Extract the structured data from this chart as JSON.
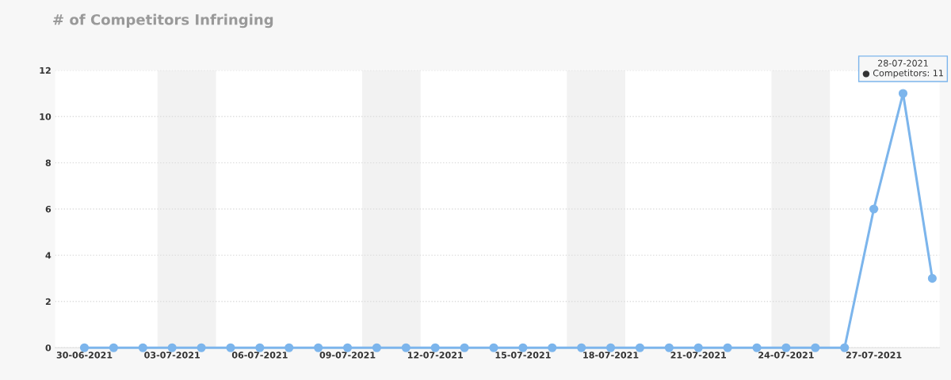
{
  "chart_data": {
    "type": "line",
    "title": "# of Competitors Infringing",
    "x": [
      "2021-06-30",
      "2021-07-01",
      "2021-07-02",
      "2021-07-03",
      "2021-07-04",
      "2021-07-05",
      "2021-07-06",
      "2021-07-07",
      "2021-07-08",
      "2021-07-09",
      "2021-07-10",
      "2021-07-11",
      "2021-07-12",
      "2021-07-13",
      "2021-07-14",
      "2021-07-15",
      "2021-07-16",
      "2021-07-17",
      "2021-07-18",
      "2021-07-19",
      "2021-07-20",
      "2021-07-21",
      "2021-07-22",
      "2021-07-23",
      "2021-07-24",
      "2021-07-25",
      "2021-07-26",
      "2021-07-27",
      "2021-07-28",
      "2021-07-29"
    ],
    "series": [
      {
        "color": "#7cb5ec",
        "values": [
          0,
          0,
          0,
          0,
          0,
          0,
          0,
          0,
          0,
          0,
          0,
          0,
          0,
          0,
          0,
          0,
          0,
          0,
          0,
          0,
          0,
          0,
          0,
          0,
          0,
          0,
          0,
          6,
          11,
          3
        ]
      }
    ],
    "marker": "circle",
    "line_style": "solid",
    "xlim": [
      "2021-06-29",
      "2021-07-29T06:00"
    ],
    "xticks": [
      {
        "value": "2021-06-30",
        "label": "30-06-2021"
      },
      {
        "value": "2021-07-03",
        "label": "03-07-2021"
      },
      {
        "value": "2021-07-06",
        "label": "06-07-2021"
      },
      {
        "value": "2021-07-09",
        "label": "09-07-2021"
      },
      {
        "value": "2021-07-12",
        "label": "12-07-2021"
      },
      {
        "value": "2021-07-15",
        "label": "15-07-2021"
      },
      {
        "value": "2021-07-18",
        "label": "18-07-2021"
      },
      {
        "value": "2021-07-21",
        "label": "21-07-2021"
      },
      {
        "value": "2021-07-24",
        "label": "24-07-2021"
      },
      {
        "value": "2021-07-27",
        "label": "27-07-2021"
      }
    ],
    "ylim": [
      0,
      12
    ],
    "yticks": [
      0,
      2,
      4,
      6,
      8,
      10,
      12
    ],
    "grid": "y",
    "bands": [
      {
        "axis": "x",
        "from": "2021-07-02T12:00",
        "to": "2021-07-04T12:00",
        "color": "#f2f2f2"
      },
      {
        "axis": "x",
        "from": "2021-07-09T12:00",
        "to": "2021-07-11T12:00",
        "color": "#f2f2f2"
      },
      {
        "axis": "x",
        "from": "2021-07-16T12:00",
        "to": "2021-07-18T12:00",
        "color": "#f2f2f2"
      },
      {
        "axis": "x",
        "from": "2021-07-23T12:00",
        "to": "2021-07-25T12:00",
        "color": "#f2f2f2"
      }
    ],
    "annotations": [
      {
        "text": "28-07-2021\n● Competitors: 11",
        "x": "2021-07-28",
        "y": 11
      }
    ]
  }
}
